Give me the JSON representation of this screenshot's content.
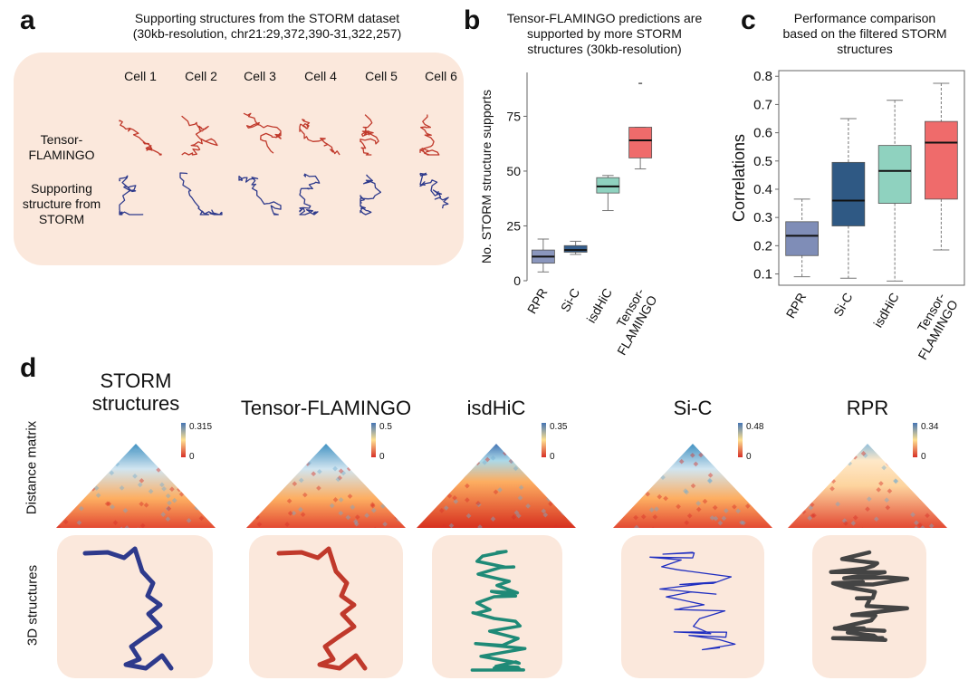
{
  "panel_a": {
    "letter": "a",
    "title_line1": "Supporting structures from the STORM dataset",
    "title_line2": "(30kb-resolution, chr21:29,372,390-31,322,257)",
    "cells": [
      "Cell 1",
      "Cell 2",
      "Cell 3",
      "Cell 4",
      "Cell 5",
      "Cell 6"
    ],
    "row1_line1": "Tensor-",
    "row1_line2": "FLAMINGO",
    "row2_line1": "Supporting",
    "row2_line2": "structure from",
    "row2_line3": "STORM",
    "colors": {
      "tensor": "#c0392b",
      "storm": "#2e3a8c",
      "box": "#fbe8dc"
    }
  },
  "chart_data": [
    {
      "type": "box",
      "panel": "b",
      "title": "Tensor-FLAMINGO predictions are supported by more STORM structures (30kb-resolution)",
      "ylabel": "No. STORM structure supports",
      "ylim": [
        0,
        95
      ],
      "yticks": [
        0,
        25,
        50,
        75
      ],
      "categories": [
        "RPR",
        "Si-C",
        "isdHiC",
        "Tensor-FLAMINGO"
      ],
      "boxes": [
        {
          "name": "RPR",
          "min": 4,
          "q1": 8,
          "median": 11,
          "q3": 14,
          "max": 19,
          "color": "#8a96bd"
        },
        {
          "name": "Si-C",
          "min": 12,
          "q1": 13,
          "median": 14,
          "q3": 16,
          "max": 18,
          "color": "#37608f"
        },
        {
          "name": "isdHiC",
          "min": 32,
          "q1": 40,
          "median": 43,
          "q3": 47,
          "max": 48,
          "color": "#8fd2bf"
        },
        {
          "name": "Tensor-FLAMINGO",
          "min": 51,
          "q1": 56,
          "median": 64,
          "q3": 70,
          "max": 70,
          "outlier": 90,
          "color": "#ef6b6b"
        }
      ]
    },
    {
      "type": "box",
      "panel": "c",
      "title": "Performance comparison based on the filtered STORM structures",
      "ylabel": "Correlations",
      "ylim": [
        0.06,
        0.82
      ],
      "yticks": [
        0.1,
        0.2,
        0.3,
        0.4,
        0.5,
        0.6,
        0.7,
        0.8
      ],
      "categories": [
        "RPR",
        "Si-C",
        "isdHiC",
        "Tensor-FLAMINGO"
      ],
      "boxes": [
        {
          "name": "RPR",
          "min": 0.09,
          "q1": 0.165,
          "median": 0.235,
          "q3": 0.285,
          "max": 0.365,
          "color": "#7f8db7"
        },
        {
          "name": "Si-C",
          "min": 0.085,
          "q1": 0.27,
          "median": 0.36,
          "q3": 0.495,
          "max": 0.65,
          "color": "#2f5984"
        },
        {
          "name": "isdHiC",
          "min": 0.075,
          "q1": 0.35,
          "median": 0.465,
          "q3": 0.555,
          "max": 0.715,
          "color": "#8fd2bf"
        },
        {
          "name": "Tensor-FLAMINGO",
          "min": 0.185,
          "q1": 0.365,
          "median": 0.565,
          "q3": 0.64,
          "max": 0.775,
          "color": "#ef6b6b"
        }
      ]
    }
  ],
  "panel_b": {
    "letter": "b",
    "title_line1": "Tensor-FLAMINGO predictions are",
    "title_line2": "supported by more STORM",
    "title_line3": "structures (30kb-resolution)"
  },
  "panel_c": {
    "letter": "c",
    "title_line1": "Performance comparison",
    "title_line2": "based on the filtered STORM",
    "title_line3": "structures"
  },
  "panel_d": {
    "letter": "d",
    "side_label_top": "Distance matrix",
    "side_label_bottom": "3D structures",
    "columns": [
      {
        "title_line1": "STORM",
        "title_line2": "structures",
        "cmax": "0.315",
        "cmin": "0",
        "structure_color": "#2e3a8c",
        "style": "smooth"
      },
      {
        "title_line1": "Tensor-FLAMINGO",
        "title_line2": "",
        "cmax": "0.5",
        "cmin": "0",
        "structure_color": "#c0392b",
        "style": "smooth"
      },
      {
        "title_line1": "isdHiC",
        "title_line2": "",
        "cmax": "0.35",
        "cmin": "0",
        "structure_color": "#1f8a77",
        "style": "tangle"
      },
      {
        "title_line1": "Si-C",
        "title_line2": "",
        "cmax": "0.48",
        "cmin": "0",
        "structure_color": "#1f2ec0",
        "style": "wire"
      },
      {
        "title_line1": "RPR",
        "title_line2": "",
        "cmax": "0.34",
        "cmin": "0",
        "structure_color": "#444444",
        "style": "zigzag"
      }
    ]
  }
}
